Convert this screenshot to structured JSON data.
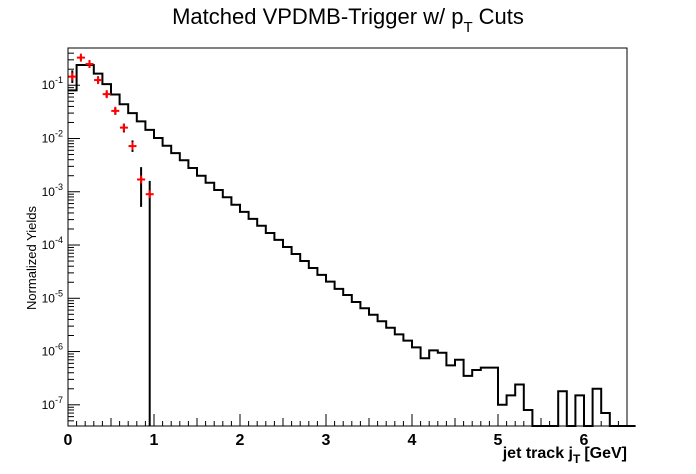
{
  "chart_data": {
    "type": "line",
    "title": "Matched VPDMB-Trigger w/ p",
    "title_sub": "T",
    "title_suffix": "Cuts",
    "xlabel": "jet track j",
    "xlabel_sub": "T",
    "xlabel_suffix": "[GeV]",
    "ylabel": "Normalized Yields",
    "xlim": [
      0,
      6.5
    ],
    "ylim": [
      4e-08,
      0.5
    ],
    "yscale": "log",
    "grid": false,
    "x_ticks": [
      0,
      1,
      2,
      3,
      4,
      5,
      6
    ],
    "x_tick_labels": [
      "0",
      "1",
      "2",
      "3",
      "4",
      "5",
      "6"
    ],
    "y_ticks": [
      1e-07,
      1e-06,
      1e-05,
      0.0001,
      0.001,
      0.01,
      0.1
    ],
    "y_tick_labels": [
      {
        "base": "10",
        "exp": "-7"
      },
      {
        "base": "10",
        "exp": "-6"
      },
      {
        "base": "10",
        "exp": "-5"
      },
      {
        "base": "10",
        "exp": "-4"
      },
      {
        "base": "10",
        "exp": "-3"
      },
      {
        "base": "10",
        "exp": "-2"
      },
      {
        "base": "10",
        "exp": "-1"
      }
    ],
    "series": [
      {
        "style": "histogram",
        "color": "#000000",
        "bin_width": 0.1,
        "x_start": 0.0,
        "values": [
          0.08,
          0.24,
          0.24,
          0.165,
          0.105,
          0.067,
          0.044,
          0.03,
          0.021,
          0.0145,
          0.0102,
          0.0073,
          0.0053,
          0.0039,
          0.0028,
          0.002,
          0.00148,
          0.00108,
          0.00079,
          0.00057,
          0.00042,
          0.00031,
          0.00023,
          0.000168,
          0.000125,
          9.2e-05,
          6.8e-05,
          5e-05,
          3.7e-05,
          2.75e-05,
          2.05e-05,
          1.5e-05,
          1.15e-05,
          8.5e-06,
          6.5e-06,
          4.9e-06,
          3.7e-06,
          2.8e-06,
          2.1e-06,
          1.6e-06,
          1.2e-06,
          7.5e-07,
          1.05e-06,
          9.5e-07,
          5.5e-07,
          7e-07,
          3.5e-07,
          4.5e-07,
          5e-07,
          5e-07,
          1e-07,
          1.5e-07,
          2.4e-07,
          8e-08,
          5e-09,
          5e-09,
          5e-09,
          1.8e-07,
          5e-09,
          1.5e-07,
          5e-09,
          2e-07,
          7e-08,
          5e-09,
          5e-09,
          5e-09
        ],
        "zero_below": 4e-08
      },
      {
        "style": "points",
        "color": "#ff0000",
        "errorbar_color": "#000000",
        "points": [
          {
            "x": 0.05,
            "y": 0.145,
            "lo": 0.11,
            "hi": 0.19
          },
          {
            "x": 0.15,
            "y": 0.33,
            "lo": 0.3,
            "hi": 0.36
          },
          {
            "x": 0.25,
            "y": 0.25,
            "lo": 0.22,
            "hi": 0.28
          },
          {
            "x": 0.35,
            "y": 0.125,
            "lo": 0.11,
            "hi": 0.14
          },
          {
            "x": 0.45,
            "y": 0.068,
            "lo": 0.06,
            "hi": 0.076
          },
          {
            "x": 0.55,
            "y": 0.033,
            "lo": 0.028,
            "hi": 0.038
          },
          {
            "x": 0.65,
            "y": 0.016,
            "lo": 0.013,
            "hi": 0.019
          },
          {
            "x": 0.75,
            "y": 0.0072,
            "lo": 0.0056,
            "hi": 0.0092
          },
          {
            "x": 0.85,
            "y": 0.0017,
            "lo": 0.00052,
            "hi": 0.0029
          },
          {
            "x": 0.95,
            "y": 0.0009,
            "lo": 1e-09,
            "hi": 0.0016
          }
        ]
      }
    ]
  }
}
